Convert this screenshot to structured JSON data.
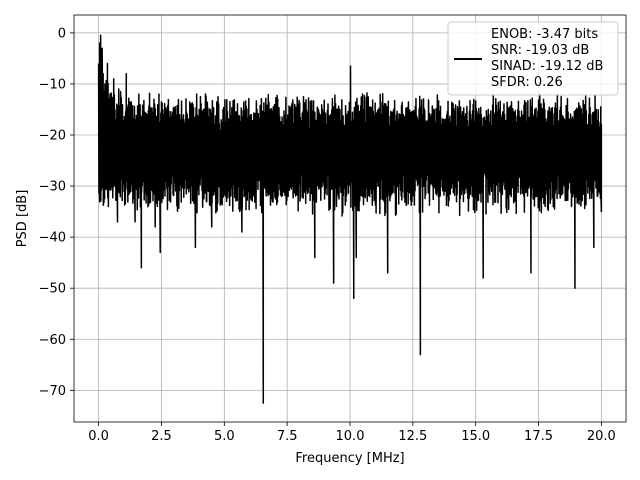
{
  "chart_data": {
    "type": "line",
    "xlabel": "Frequency [MHz]",
    "ylabel": "PSD [dB]",
    "xlim": [
      -0.98,
      20.98
    ],
    "ylim": [
      -76.2,
      3.5
    ],
    "x_ticks": [
      0.0,
      2.5,
      5.0,
      7.5,
      10.0,
      12.5,
      15.0,
      17.5,
      20.0
    ],
    "x_tick_labels": [
      "0.0",
      "2.5",
      "5.0",
      "7.5",
      "10.0",
      "12.5",
      "15.0",
      "17.5",
      "20.0"
    ],
    "y_ticks": [
      0,
      -10,
      -20,
      -30,
      -40,
      -50,
      -60,
      -70
    ],
    "y_tick_labels": [
      "0",
      "−10",
      "−20",
      "−30",
      "−40",
      "−50",
      "−60",
      "−70"
    ],
    "grid": true,
    "legend_position": "top-right",
    "line_color": "#000000",
    "series": [
      {
        "legend_lines": [
          "ENOB: -3.47 bits",
          "SNR: -19.03 dB",
          "SINAD: -19.12 dB",
          "SFDR: 0.26"
        ],
        "noise_band": {
          "upper_typical": -14,
          "lower_typical": -30,
          "center": -22,
          "x_start": 0.0,
          "x_end": 20.0
        },
        "points": [
          [
            0.0,
            -6
          ],
          [
            0.02,
            -14
          ],
          [
            0.04,
            -2
          ],
          [
            0.06,
            -18
          ],
          [
            0.08,
            -0.5
          ],
          [
            0.1,
            -12
          ],
          [
            0.12,
            -20
          ],
          [
            0.14,
            -3
          ],
          [
            0.16,
            -26
          ],
          [
            0.18,
            -8
          ],
          [
            0.2,
            -32
          ],
          [
            0.25,
            -10
          ],
          [
            0.3,
            -22
          ],
          [
            0.35,
            -6
          ],
          [
            0.4,
            -28
          ],
          [
            0.45,
            -12
          ],
          [
            0.5,
            -24
          ],
          [
            0.6,
            -9
          ],
          [
            0.7,
            -30
          ],
          [
            0.75,
            -37
          ],
          [
            0.8,
            -11
          ],
          [
            1.0,
            -27
          ],
          [
            1.1,
            -8
          ],
          [
            1.35,
            -30
          ],
          [
            1.45,
            -37
          ],
          [
            1.6,
            -12
          ],
          [
            1.7,
            -46
          ],
          [
            1.8,
            -14
          ],
          [
            2.25,
            -38
          ],
          [
            2.4,
            -12
          ],
          [
            2.45,
            -43
          ],
          [
            2.6,
            -16
          ],
          [
            3.7,
            -29
          ],
          [
            3.85,
            -42
          ],
          [
            4.0,
            -15
          ],
          [
            4.3,
            -33
          ],
          [
            4.5,
            -38
          ],
          [
            4.7,
            -14
          ],
          [
            5.7,
            -39
          ],
          [
            5.9,
            -17
          ],
          [
            6.55,
            -72.5
          ],
          [
            6.65,
            -15
          ],
          [
            8.6,
            -44
          ],
          [
            8.75,
            -16
          ],
          [
            9.35,
            -49
          ],
          [
            9.5,
            -18
          ],
          [
            10.02,
            -6.5
          ],
          [
            10.12,
            -20
          ],
          [
            10.15,
            -52
          ],
          [
            10.25,
            -44
          ],
          [
            10.4,
            -18
          ],
          [
            11.5,
            -47
          ],
          [
            11.65,
            -17
          ],
          [
            12.8,
            -63
          ],
          [
            12.9,
            -16
          ],
          [
            15.3,
            -48
          ],
          [
            15.5,
            -15
          ],
          [
            17.2,
            -47
          ],
          [
            17.35,
            -15
          ],
          [
            18.95,
            -50
          ],
          [
            19.05,
            -15
          ],
          [
            19.7,
            -42
          ],
          [
            19.8,
            -15
          ],
          [
            20.0,
            -35
          ]
        ]
      }
    ]
  }
}
